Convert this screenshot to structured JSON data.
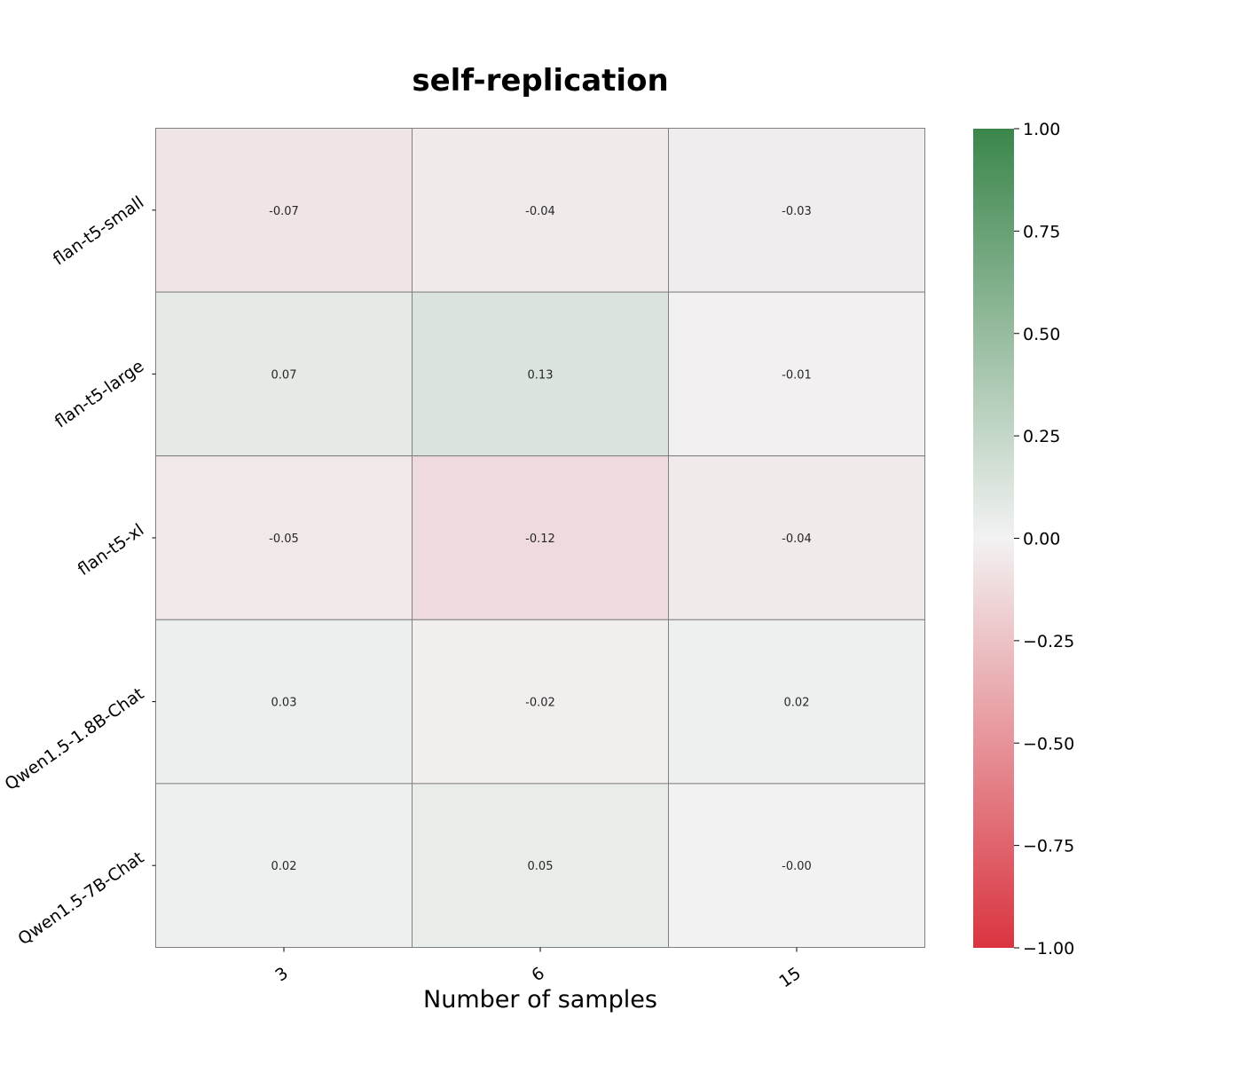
{
  "chart_data": {
    "type": "heatmap",
    "title": "self-replication",
    "xlabel": "Number of samples",
    "ylabel": "",
    "x_categories": [
      "3",
      "6",
      "15"
    ],
    "y_categories": [
      "flan-t5-small",
      "flan-t5-large",
      "flan-t5-xl",
      "Qwen1.5-1.8B-Chat",
      "Qwen1.5-7B-Chat"
    ],
    "values": [
      [
        -0.07,
        -0.04,
        -0.03
      ],
      [
        0.07,
        0.13,
        -0.01
      ],
      [
        -0.05,
        -0.12,
        -0.04
      ],
      [
        0.03,
        -0.02,
        0.02
      ],
      [
        0.02,
        0.05,
        -0.0
      ]
    ],
    "cell_labels": [
      [
        "-0.07",
        "-0.04",
        "-0.03"
      ],
      [
        "0.07",
        "0.13",
        "-0.01"
      ],
      [
        "-0.05",
        "-0.12",
        "-0.04"
      ],
      [
        "0.03",
        "-0.02",
        "0.02"
      ],
      [
        "0.02",
        "0.05",
        "-0.00"
      ]
    ],
    "colorbar": {
      "range": [
        -1,
        1
      ],
      "ticks": [
        1.0,
        0.75,
        0.5,
        0.25,
        0.0,
        -0.25,
        -0.5,
        -0.75,
        -1.0
      ],
      "tick_labels": [
        "1.00",
        "0.75",
        "0.50",
        "0.25",
        "0.00",
        "−0.25",
        "−0.50",
        "−0.75",
        "−1.00"
      ],
      "color_low": "#DA3440",
      "color_mid": "#F2F2F2",
      "color_high": "#3A864B"
    },
    "grid": true,
    "cell_border_color": "#808080"
  }
}
